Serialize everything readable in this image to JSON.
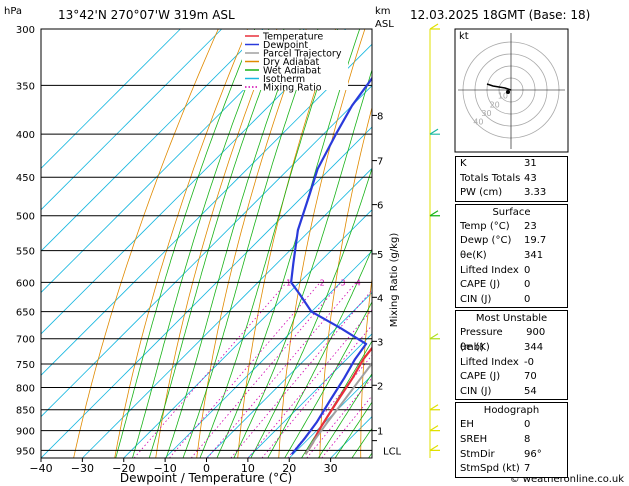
{
  "header": {
    "hpa_label": "hPa",
    "location": "13°42'N  270°07'W  319m  ASL",
    "km_label": "km",
    "asl_label": "ASL",
    "datetime": "12.03.2025  18GMT  (Base: 18)"
  },
  "legend": [
    {
      "label": "Temperature",
      "color": "#e8303a"
    },
    {
      "label": "Dewpoint",
      "color": "#2a3adb"
    },
    {
      "label": "Parcel Trajectory",
      "color": "#a0a0a0"
    },
    {
      "label": "Dry Adiabat",
      "color": "#e08a00"
    },
    {
      "label": "Wet Adiabat",
      "color": "#19b319"
    },
    {
      "label": "Isotherm",
      "color": "#19b8e0"
    },
    {
      "label": "Mixing Ratio",
      "color": "#d000b0"
    }
  ],
  "chart_data": {
    "type": "line",
    "chart_kind": "skew-T log-P sounding",
    "xlabel": "Dewpoint / Temperature (°C)",
    "y2label": "Mixing Ratio (g/kg)",
    "pressure_ticks": [
      300,
      350,
      400,
      450,
      500,
      550,
      600,
      650,
      700,
      750,
      800,
      850,
      900,
      950
    ],
    "temp_ticks": [
      -40,
      -30,
      -20,
      -10,
      0,
      10,
      20,
      30
    ],
    "xlim": [
      -40,
      40
    ],
    "ylim_hpa": [
      300,
      970
    ],
    "km_ticks": [
      {
        "label": "8",
        "p": 380
      },
      {
        "label": "7",
        "p": 430
      },
      {
        "label": "6",
        "p": 485
      },
      {
        "label": "5",
        "p": 555
      },
      {
        "label": "4",
        "p": 625
      },
      {
        "label": "3",
        "p": 705
      },
      {
        "label": "2",
        "p": 795
      },
      {
        "label": "1",
        "p": 900
      }
    ],
    "lcl": {
      "label": "LCL",
      "p": 925
    },
    "mixing_ratio_labels": [
      "1",
      "2",
      "3",
      "4",
      "6",
      "8",
      "10",
      "15",
      "20",
      "25"
    ],
    "mixing_ratio_values": [
      1,
      2,
      3,
      4,
      6,
      8,
      10,
      15,
      20,
      25
    ],
    "series": [
      {
        "name": "Temperature",
        "color": "#e8303a",
        "points": [
          [
            23,
            960
          ],
          [
            22,
            930
          ],
          [
            20.5,
            900
          ],
          [
            19,
            860
          ],
          [
            17.5,
            820
          ],
          [
            16,
            780
          ],
          [
            14,
            740
          ],
          [
            13,
            700
          ],
          [
            11.5,
            660
          ],
          [
            10,
            620
          ],
          [
            7.5,
            580
          ],
          [
            5,
            540
          ],
          [
            2,
            500
          ],
          [
            -2,
            460
          ],
          [
            -6,
            420
          ],
          [
            -10,
            390
          ],
          [
            -15,
            360
          ],
          [
            -19,
            330
          ],
          [
            -22,
            300
          ]
        ]
      },
      {
        "name": "Dewpoint",
        "color": "#2a3adb",
        "points": [
          [
            19.7,
            960
          ],
          [
            19,
            920
          ],
          [
            18,
            880
          ],
          [
            16,
            830
          ],
          [
            14,
            780
          ],
          [
            12,
            740
          ],
          [
            11,
            710
          ],
          [
            1,
            680
          ],
          [
            -10,
            650
          ],
          [
            -17,
            620
          ],
          [
            -22,
            600
          ],
          [
            -26,
            570
          ],
          [
            -33,
            520
          ],
          [
            -39,
            470
          ],
          [
            -43,
            440
          ],
          [
            -47,
            400
          ],
          [
            -50,
            370
          ],
          [
            -52,
            340
          ],
          [
            -55,
            300
          ]
        ]
      },
      {
        "name": "Parcel Trajectory",
        "color": "#a0a0a0",
        "points": [
          [
            23,
            960
          ],
          [
            21.8,
            925
          ],
          [
            20.6,
            880
          ],
          [
            19.4,
            830
          ],
          [
            18,
            780
          ],
          [
            16.6,
            730
          ],
          [
            15,
            680
          ],
          [
            13.2,
            630
          ],
          [
            11,
            580
          ],
          [
            8.4,
            530
          ],
          [
            5.4,
            480
          ],
          [
            1.6,
            430
          ],
          [
            -3,
            380
          ],
          [
            -9,
            330
          ],
          [
            -13,
            300
          ]
        ]
      }
    ]
  },
  "hodograph": {
    "kt_label": "kt",
    "ring_labels": [
      "10",
      "20",
      "30",
      "40"
    ]
  },
  "indices": [
    {
      "label": "K",
      "value": "31"
    },
    {
      "label": "Totals Totals",
      "value": "43"
    },
    {
      "label": "PW (cm)",
      "value": "3.33"
    }
  ],
  "surface": {
    "title": "Surface",
    "rows": [
      {
        "label": "Temp (°C)",
        "value": "23"
      },
      {
        "label": "Dewp (°C)",
        "value": "19.7"
      },
      {
        "label": "θe(K)",
        "value": "341"
      },
      {
        "label": "Lifted Index",
        "value": "0"
      },
      {
        "label": "CAPE (J)",
        "value": "0"
      },
      {
        "label": "CIN (J)",
        "value": "0"
      }
    ]
  },
  "most_unstable": {
    "title": "Most Unstable",
    "rows": [
      {
        "label": "Pressure (mb)",
        "value": "900"
      },
      {
        "label": "θe (K)",
        "value": "344"
      },
      {
        "label": "Lifted Index",
        "value": "-0"
      },
      {
        "label": "CAPE (J)",
        "value": "70"
      },
      {
        "label": "CIN (J)",
        "value": "54"
      }
    ]
  },
  "hodograph_table": {
    "title": "Hodograph",
    "rows": [
      {
        "label": "EH",
        "value": "0"
      },
      {
        "label": "SREH",
        "value": "8"
      },
      {
        "label": "StmDir",
        "value": "96°"
      },
      {
        "label": "StmSpd (kt)",
        "value": "7"
      }
    ]
  },
  "footer": {
    "copyright": "© weatheronline.co.uk"
  }
}
